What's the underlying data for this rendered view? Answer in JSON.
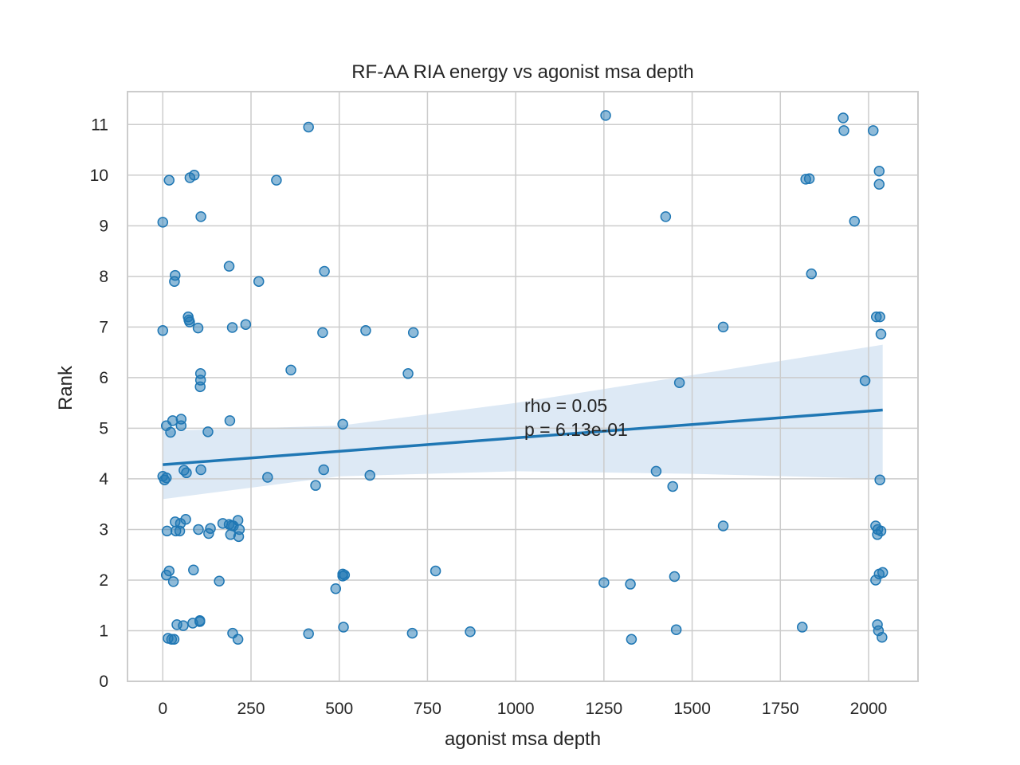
{
  "chart_data": {
    "type": "scatter",
    "title": "RF-AA RIA energy vs agonist msa depth",
    "xlabel": "agonist msa depth",
    "ylabel": "Rank",
    "xlim": [
      -100,
      2140
    ],
    "ylim": [
      0,
      11.65
    ],
    "xticks": [
      0,
      250,
      500,
      750,
      1000,
      1250,
      1500,
      1750,
      2000
    ],
    "yticks": [
      0,
      1,
      2,
      3,
      4,
      5,
      6,
      7,
      8,
      9,
      10,
      11
    ],
    "grid": true,
    "legend": "none",
    "colors": {
      "points": "#1f77b4",
      "fit": "#1f77b4",
      "band": "#c6dbef"
    },
    "annotation": [
      "rho = 0.05",
      "p = 6.13e-01"
    ],
    "annotation_at": [
      1020,
      5.45
    ],
    "fit": {
      "x": [
        0,
        2040
      ],
      "y": [
        4.28,
        5.36
      ]
    },
    "confidence_band": {
      "x": [
        0,
        500,
        1000,
        1500,
        2040
      ],
      "lower": [
        3.6,
        4.05,
        4.15,
        4.1,
        4.0
      ],
      "upper": [
        4.95,
        5.05,
        5.5,
        6.05,
        6.65
      ]
    },
    "points": [
      [
        0,
        9.07
      ],
      [
        0,
        6.93
      ],
      [
        0,
        4.05
      ],
      [
        5,
        3.98
      ],
      [
        10,
        4.02
      ],
      [
        10,
        5.05
      ],
      [
        10,
        2.1
      ],
      [
        12,
        2.97
      ],
      [
        15,
        0.85
      ],
      [
        18,
        9.9
      ],
      [
        18,
        2.18
      ],
      [
        22,
        4.92
      ],
      [
        25,
        0.83
      ],
      [
        28,
        5.15
      ],
      [
        30,
        1.97
      ],
      [
        32,
        0.83
      ],
      [
        33,
        7.9
      ],
      [
        35,
        8.02
      ],
      [
        35,
        3.15
      ],
      [
        37,
        2.97
      ],
      [
        40,
        1.12
      ],
      [
        48,
        2.97
      ],
      [
        50,
        3.12
      ],
      [
        52,
        5.05
      ],
      [
        52,
        5.18
      ],
      [
        58,
        1.1
      ],
      [
        60,
        4.17
      ],
      [
        65,
        3.2
      ],
      [
        67,
        4.12
      ],
      [
        72,
        7.2
      ],
      [
        74,
        7.14
      ],
      [
        76,
        7.1
      ],
      [
        77,
        9.95
      ],
      [
        85,
        1.15
      ],
      [
        87,
        2.2
      ],
      [
        89,
        10.0
      ],
      [
        100,
        6.98
      ],
      [
        101,
        3.0
      ],
      [
        105,
        1.18
      ],
      [
        105,
        1.2
      ],
      [
        106,
        5.82
      ],
      [
        107,
        6.08
      ],
      [
        107,
        5.95
      ],
      [
        108,
        4.18
      ],
      [
        108,
        9.18
      ],
      [
        128,
        4.93
      ],
      [
        130,
        2.92
      ],
      [
        135,
        3.02
      ],
      [
        160,
        1.98
      ],
      [
        170,
        3.12
      ],
      [
        188,
        3.1
      ],
      [
        188,
        8.2
      ],
      [
        190,
        5.15
      ],
      [
        192,
        2.9
      ],
      [
        195,
        3.08
      ],
      [
        197,
        6.99
      ],
      [
        198,
        0.95
      ],
      [
        200,
        3.07
      ],
      [
        213,
        0.83
      ],
      [
        213,
        3.18
      ],
      [
        215,
        2.86
      ],
      [
        217,
        3.0
      ],
      [
        235,
        7.05
      ],
      [
        272,
        7.9
      ],
      [
        297,
        4.03
      ],
      [
        322,
        9.9
      ],
      [
        363,
        6.15
      ],
      [
        413,
        10.95
      ],
      [
        413,
        0.94
      ],
      [
        433,
        3.87
      ],
      [
        453,
        6.89
      ],
      [
        456,
        4.18
      ],
      [
        458,
        8.1
      ],
      [
        490,
        1.83
      ],
      [
        510,
        5.08
      ],
      [
        510,
        2.12
      ],
      [
        510,
        2.08
      ],
      [
        512,
        1.07
      ],
      [
        515,
        2.1
      ],
      [
        575,
        6.93
      ],
      [
        587,
        4.07
      ],
      [
        695,
        6.08
      ],
      [
        707,
        0.95
      ],
      [
        710,
        6.89
      ],
      [
        773,
        2.18
      ],
      [
        871,
        0.98
      ],
      [
        1250,
        1.95
      ],
      [
        1255,
        11.18
      ],
      [
        1325,
        1.92
      ],
      [
        1328,
        0.83
      ],
      [
        1398,
        4.15
      ],
      [
        1425,
        9.18
      ],
      [
        1445,
        3.85
      ],
      [
        1450,
        2.07
      ],
      [
        1455,
        1.02
      ],
      [
        1464,
        5.9
      ],
      [
        1588,
        3.07
      ],
      [
        1588,
        7.0
      ],
      [
        1812,
        1.07
      ],
      [
        1822,
        9.92
      ],
      [
        1832,
        9.93
      ],
      [
        1838,
        8.05
      ],
      [
        1928,
        11.13
      ],
      [
        1930,
        10.88
      ],
      [
        1960,
        9.09
      ],
      [
        1990,
        5.94
      ],
      [
        2013,
        10.88
      ],
      [
        2020,
        3.07
      ],
      [
        2020,
        2.0
      ],
      [
        2022,
        7.2
      ],
      [
        2025,
        2.9
      ],
      [
        2025,
        1.12
      ],
      [
        2026,
        3.0
      ],
      [
        2028,
        1.0
      ],
      [
        2030,
        10.08
      ],
      [
        2030,
        9.82
      ],
      [
        2030,
        2.12
      ],
      [
        2032,
        7.2
      ],
      [
        2032,
        3.98
      ],
      [
        2035,
        2.97
      ],
      [
        2035,
        6.86
      ],
      [
        2038,
        0.87
      ],
      [
        2040,
        2.15
      ]
    ]
  }
}
